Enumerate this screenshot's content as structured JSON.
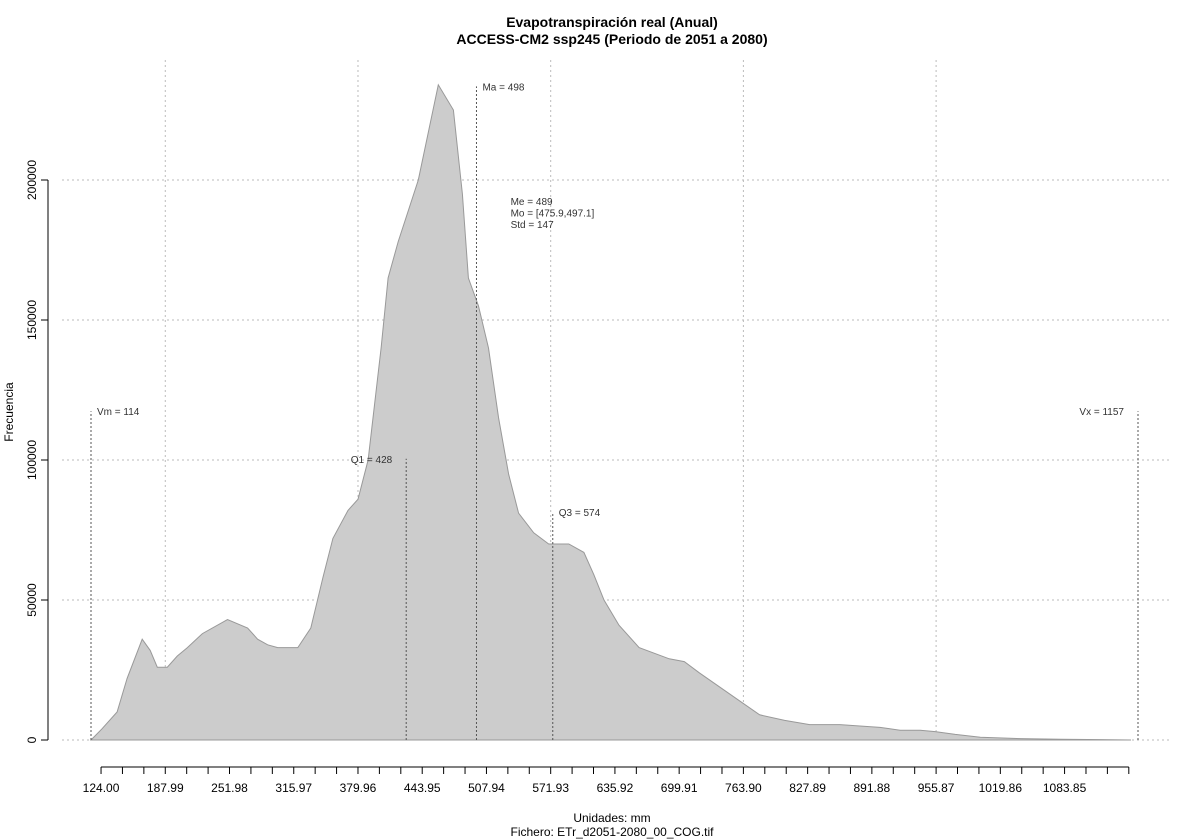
{
  "chart_data": {
    "type": "area",
    "title": "Evapotranspiración real (Anual)",
    "subtitle": "ACCESS-CM2 ssp245 (Periodo de 2051 a 2080)",
    "xlabel": "Unidades: mm",
    "file_label": "Fichero: ETr_d2051-2080_00_COG.tif",
    "ylabel": "Frecuencia",
    "fill_color": "#cccccc",
    "line_color": "#999999",
    "grid": true,
    "xlim": [
      114,
      1157
    ],
    "ylim": [
      0,
      235000
    ],
    "yticks": [
      0,
      50000,
      100000,
      150000,
      200000
    ],
    "ytick_labels": [
      "0",
      "50000",
      "100000",
      "150000",
      "200000"
    ],
    "xtick_values": [
      124.0,
      187.99,
      251.98,
      315.97,
      379.96,
      443.95,
      507.94,
      571.93,
      635.92,
      699.91,
      763.9,
      827.89,
      891.88,
      955.87,
      1019.86,
      1083.85
    ],
    "xtick_labels": [
      "124.00",
      "187.99",
      "251.98",
      "315.97",
      "379.96",
      "443.95",
      "507.94",
      "571.93",
      "635.92",
      "699.91",
      "763.90",
      "827.89",
      "891.88",
      "955.87",
      "1019.86",
      "1083.85"
    ],
    "minor_tick_step": 21.33,
    "vertical_grid_x": [
      187.99,
      379.96,
      571.93,
      763.9,
      955.87
    ],
    "series": [
      {
        "x": [
          114,
          125,
          140,
          150,
          165,
          173,
          180,
          190,
          200,
          210,
          225,
          250,
          270,
          280,
          290,
          300,
          320,
          333,
          345,
          355,
          370,
          380,
          390,
          403,
          410,
          420,
          440,
          460,
          475,
          484,
          490,
          500,
          510,
          520,
          530,
          540,
          555,
          570,
          590,
          605,
          615,
          625,
          640,
          660,
          690,
          705,
          720,
          740,
          760,
          780,
          805,
          830,
          860,
          880,
          900,
          920,
          940,
          955,
          975,
          1000,
          1040,
          1080,
          1120,
          1150
        ],
        "y": [
          0,
          4000,
          10000,
          22000,
          36000,
          32000,
          26000,
          26000,
          30000,
          33000,
          38000,
          43000,
          40000,
          36000,
          34000,
          33000,
          33000,
          40000,
          58000,
          72000,
          82000,
          86000,
          100000,
          140000,
          165000,
          178000,
          200000,
          234000,
          225000,
          195000,
          165000,
          155000,
          140000,
          115000,
          95000,
          81000,
          74000,
          70000,
          70000,
          67000,
          59000,
          50000,
          41000,
          33000,
          29000,
          28000,
          24000,
          19000,
          14000,
          9000,
          7000,
          5500,
          5500,
          5000,
          4500,
          3500,
          3500,
          3000,
          2000,
          1000,
          500,
          300,
          150,
          0
        ]
      }
    ],
    "annotations": [
      {
        "label": "Vm = 114",
        "x": 114,
        "y": 116000,
        "anchor": "start"
      },
      {
        "label": "Q1 = 428",
        "x": 428,
        "y": 99000,
        "anchor": "end"
      },
      {
        "label": "Ma = 498",
        "x": 498,
        "y": 232000,
        "anchor": "start"
      },
      {
        "label": "Q3 = 574",
        "x": 574,
        "y": 80000,
        "anchor": "start"
      },
      {
        "label": "Vx = 1157",
        "x": 1157,
        "y": 116000,
        "anchor": "end"
      }
    ],
    "stats_text": [
      "Me = 489",
      "Mo = [475.9,497.1]",
      "Std = 147"
    ],
    "stats_anchor": {
      "x": 532,
      "y": 191000
    }
  }
}
